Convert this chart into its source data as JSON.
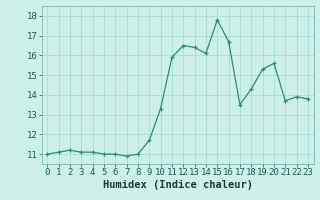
{
  "x": [
    0,
    1,
    2,
    3,
    4,
    5,
    6,
    7,
    8,
    9,
    10,
    11,
    12,
    13,
    14,
    15,
    16,
    17,
    18,
    19,
    20,
    21,
    22,
    23
  ],
  "y": [
    11.0,
    11.1,
    11.2,
    11.1,
    11.1,
    11.0,
    11.0,
    10.9,
    11.0,
    11.7,
    13.3,
    15.9,
    16.5,
    16.4,
    16.1,
    17.8,
    16.7,
    13.5,
    14.3,
    15.3,
    15.6,
    13.7,
    13.9,
    13.8
  ],
  "line_color": "#2d8b72",
  "marker": "+",
  "marker_size": 3.5,
  "marker_lw": 0.9,
  "bg_color": "#cef0eb",
  "grid_color": "#a8ddd8",
  "xlabel": "Humidex (Indice chaleur)",
  "ylim": [
    10.5,
    18.5
  ],
  "xlim": [
    -0.5,
    23.5
  ],
  "yticks": [
    11,
    12,
    13,
    14,
    15,
    16,
    17,
    18
  ],
  "xticks": [
    0,
    1,
    2,
    3,
    4,
    5,
    6,
    7,
    8,
    9,
    10,
    11,
    12,
    13,
    14,
    15,
    16,
    17,
    18,
    19,
    20,
    21,
    22,
    23
  ],
  "xtick_labels": [
    "0",
    "1",
    "2",
    "3",
    "4",
    "5",
    "6",
    "7",
    "8",
    "9",
    "10",
    "11",
    "12",
    "13",
    "14",
    "15",
    "16",
    "17",
    "18",
    "19",
    "20",
    "21",
    "22",
    "23"
  ],
  "tick_fontsize": 6.5,
  "xlabel_fontsize": 7.5,
  "line_width": 0.9
}
